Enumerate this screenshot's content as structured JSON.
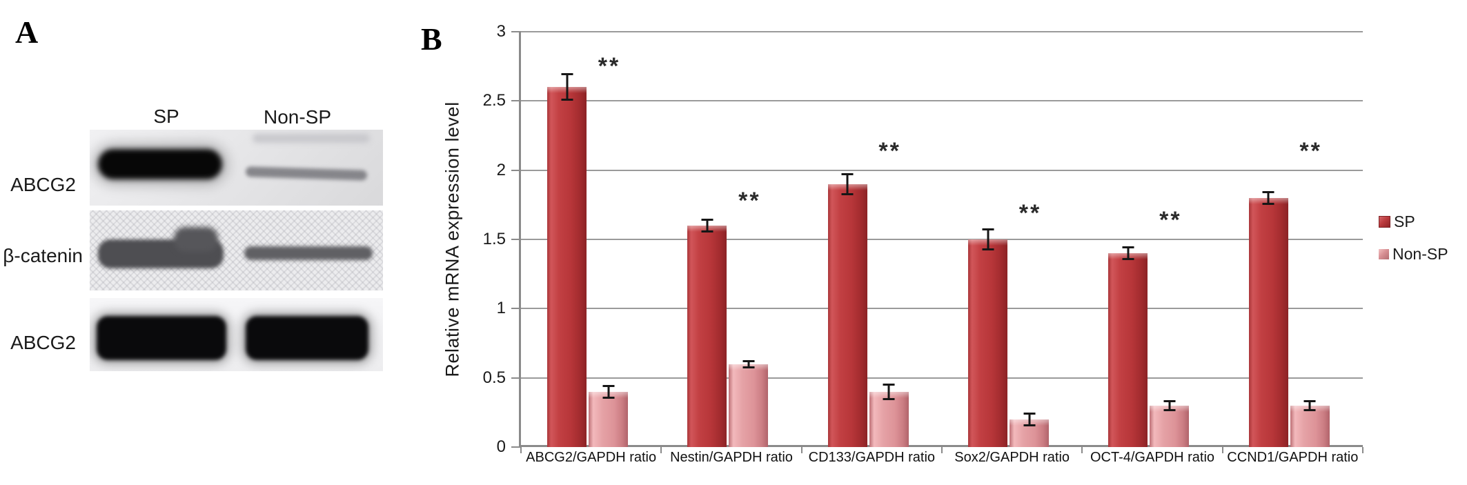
{
  "page": {
    "background": "#ffffff"
  },
  "panel_a": {
    "label": "A",
    "lane_headers": [
      "SP",
      "Non-SP"
    ],
    "blot_rows": [
      {
        "label": "ABCG2"
      },
      {
        "label": "β-catenin"
      },
      {
        "label": "ABCG2"
      }
    ]
  },
  "panel_b": {
    "label": "B"
  },
  "chart_data": {
    "type": "bar",
    "title": "",
    "xlabel": "",
    "ylabel": "Relative mRNA expression level",
    "categories": [
      "ABCG2/GAPDH ratio",
      "Nestin/GAPDH ratio",
      "CD133/GAPDH ratio",
      "Sox2/GAPDH ratio",
      "OCT-4/GAPDH ratio",
      "CCND1/GAPDH ratio"
    ],
    "series": [
      {
        "name": "SP",
        "color": "#b73639",
        "values": [
          2.6,
          1.6,
          1.9,
          1.5,
          1.4,
          1.8
        ],
        "errors": [
          0.1,
          0.05,
          0.08,
          0.08,
          0.05,
          0.05
        ]
      },
      {
        "name": "Non-SP",
        "color": "#e29b9f",
        "values": [
          0.4,
          0.6,
          0.4,
          0.2,
          0.3,
          0.3
        ],
        "errors": [
          0.05,
          0.03,
          0.06,
          0.05,
          0.04,
          0.04
        ]
      }
    ],
    "significance_marker": "**",
    "significance_y": [
      2.75,
      1.78,
      2.14,
      1.69,
      1.64,
      2.14
    ],
    "ylim": [
      0,
      3
    ],
    "ytick_step": 0.5,
    "grid": true,
    "grid_color": "#9a9a9a",
    "axis_color": "#8a8a8a",
    "legend_position": "right"
  }
}
